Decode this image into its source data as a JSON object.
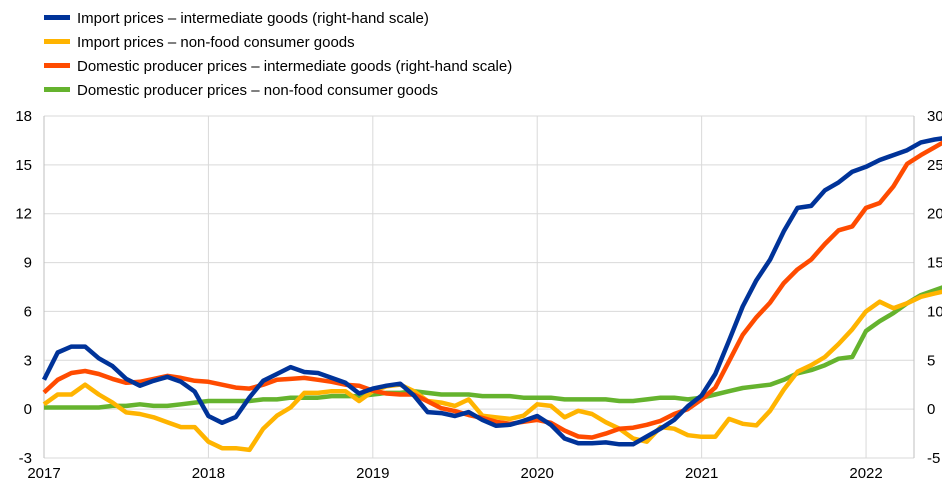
{
  "chart_data": {
    "type": "line",
    "title": "",
    "xlabel": "",
    "ylabel": "",
    "x_tick_labels": [
      "2017",
      "2018",
      "2019",
      "2020",
      "2021",
      "2022"
    ],
    "left_axis": {
      "min": -3,
      "max": 18,
      "ticks": [
        "-3",
        "0",
        "3",
        "6",
        "9",
        "12",
        "15",
        "18"
      ]
    },
    "right_axis": {
      "min": -5,
      "max": 30,
      "ticks": [
        "-5",
        "0",
        "5",
        "10",
        "15",
        "20",
        "25",
        "30"
      ]
    },
    "grid": true,
    "legend_position": "top-left",
    "series": [
      {
        "name": "Import prices – intermediate goods (right-hand scale)",
        "axis": "right",
        "color": "#003399",
        "start": "2017-01",
        "values": [
          3.0,
          5.8,
          6.4,
          6.4,
          5.2,
          4.4,
          3.1,
          2.4,
          2.9,
          3.3,
          2.8,
          1.8,
          -0.7,
          -1.4,
          -0.8,
          1.2,
          2.9,
          3.6,
          4.3,
          3.8,
          3.7,
          3.2,
          2.7,
          1.6,
          2.1,
          2.4,
          2.6,
          1.4,
          -0.3,
          -0.4,
          -0.7,
          -0.3,
          -1.1,
          -1.7,
          -1.6,
          -1.2,
          -0.7,
          -1.6,
          -3.0,
          -3.5,
          -3.5,
          -3.4,
          -3.6,
          -3.6,
          -2.8,
          -2.0,
          -1.1,
          0.3,
          1.4,
          3.6,
          7.0,
          10.5,
          13.2,
          15.3,
          18.2,
          20.6,
          20.8,
          22.4,
          23.2,
          24.3,
          24.8,
          25.5,
          26.0,
          26.5,
          27.3,
          27.6,
          27.8
        ]
      },
      {
        "name": "Import prices – non-food consumer goods",
        "axis": "left",
        "color": "#ffb400",
        "start": "2017-01",
        "values": [
          0.3,
          0.9,
          0.9,
          1.5,
          0.9,
          0.4,
          -0.2,
          -0.3,
          -0.5,
          -0.8,
          -1.1,
          -1.1,
          -2.0,
          -2.4,
          -2.4,
          -2.5,
          -1.2,
          -0.4,
          0.1,
          1.0,
          1.0,
          1.1,
          1.1,
          0.5,
          1.1,
          1.4,
          1.5,
          1.1,
          0.5,
          0.4,
          0.2,
          0.6,
          -0.4,
          -0.5,
          -0.6,
          -0.4,
          0.3,
          0.2,
          -0.5,
          -0.1,
          -0.3,
          -0.8,
          -1.2,
          -1.8,
          -2.0,
          -1.1,
          -1.2,
          -1.6,
          -1.7,
          -1.7,
          -0.6,
          -0.9,
          -1.0,
          -0.1,
          1.2,
          2.3,
          2.7,
          3.2,
          4.0,
          4.9,
          6.0,
          6.6,
          6.2,
          6.5,
          6.9,
          7.1,
          7.3
        ]
      },
      {
        "name": "Domestic producer prices – intermediate goods (right-hand scale)",
        "axis": "right",
        "color": "#ff4b00",
        "start": "2017-01",
        "values": [
          1.7,
          3.0,
          3.7,
          3.9,
          3.6,
          3.1,
          2.7,
          2.8,
          3.1,
          3.4,
          3.2,
          2.9,
          2.8,
          2.5,
          2.2,
          2.1,
          2.5,
          3.0,
          3.1,
          3.2,
          3.0,
          2.8,
          2.5,
          2.4,
          1.9,
          1.6,
          1.5,
          1.5,
          0.8,
          0.1,
          -0.2,
          -0.6,
          -0.9,
          -1.3,
          -1.5,
          -1.3,
          -1.1,
          -1.4,
          -2.2,
          -2.8,
          -2.9,
          -2.5,
          -2.0,
          -1.9,
          -1.6,
          -1.2,
          -0.5,
          0.0,
          1.0,
          2.2,
          4.9,
          7.6,
          9.4,
          10.9,
          12.9,
          14.3,
          15.3,
          16.9,
          18.3,
          18.7,
          20.6,
          21.1,
          22.8,
          25.1,
          26.0,
          26.8,
          27.6
        ]
      },
      {
        "name": "Domestic producer prices – non-food consumer goods",
        "axis": "left",
        "color": "#65b32e",
        "start": "2017-01",
        "values": [
          0.1,
          0.1,
          0.1,
          0.1,
          0.1,
          0.2,
          0.2,
          0.3,
          0.2,
          0.2,
          0.3,
          0.4,
          0.5,
          0.5,
          0.5,
          0.5,
          0.6,
          0.6,
          0.7,
          0.7,
          0.7,
          0.8,
          0.8,
          0.8,
          0.9,
          1.0,
          1.0,
          1.1,
          1.0,
          0.9,
          0.9,
          0.9,
          0.8,
          0.8,
          0.8,
          0.7,
          0.7,
          0.7,
          0.6,
          0.6,
          0.6,
          0.6,
          0.5,
          0.5,
          0.6,
          0.7,
          0.7,
          0.6,
          0.7,
          0.9,
          1.1,
          1.3,
          1.4,
          1.5,
          1.8,
          2.2,
          2.4,
          2.7,
          3.1,
          3.2,
          4.8,
          5.4,
          5.9,
          6.5,
          7.0,
          7.3,
          7.6
        ]
      }
    ]
  }
}
